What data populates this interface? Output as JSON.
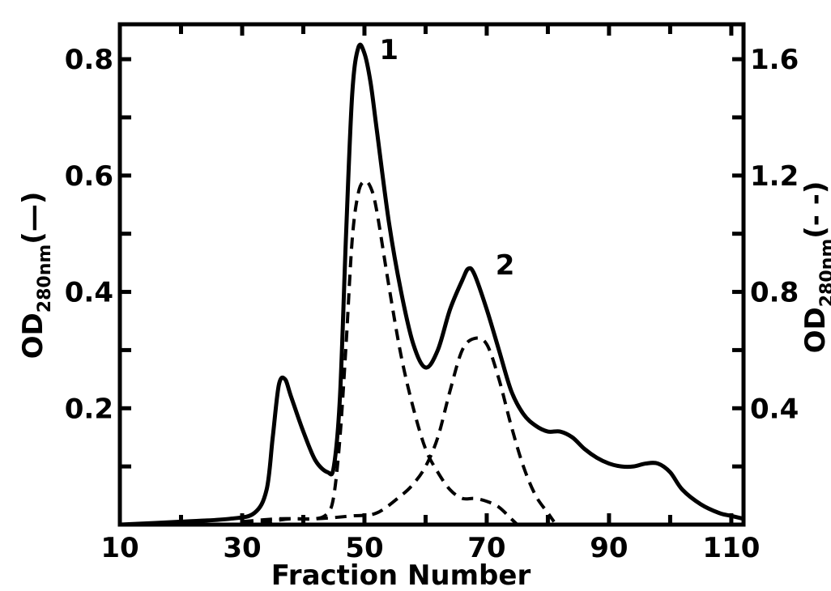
{
  "chart_data": {
    "type": "line",
    "xlabel": "Fraction Number",
    "ylabel_left": {
      "main": "OD",
      "sub": "280nm",
      "suffix": "(—)"
    },
    "ylabel_right": {
      "main": "OD",
      "sub": "280nm",
      "suffix": "(- -)"
    },
    "xlim": [
      10,
      112
    ],
    "ylim_left": [
      0,
      0.86
    ],
    "ylim_right": [
      0,
      1.72
    ],
    "x_ticks": [
      10,
      30,
      50,
      70,
      90,
      110
    ],
    "y_ticks_left": [
      0.2,
      0.4,
      0.6,
      0.8
    ],
    "y_ticks_right": [
      0.4,
      0.8,
      1.2,
      1.6
    ],
    "peak_labels": [
      {
        "text": "1",
        "x": 54,
        "y": 0.8
      },
      {
        "text": "2",
        "x": 73,
        "y": 0.43
      }
    ],
    "series": [
      {
        "style": "solid",
        "axis": "left",
        "points": [
          [
            10,
            0.0
          ],
          [
            20,
            0.005
          ],
          [
            28,
            0.01
          ],
          [
            32,
            0.02
          ],
          [
            34,
            0.06
          ],
          [
            35,
            0.15
          ],
          [
            36,
            0.24
          ],
          [
            37,
            0.25
          ],
          [
            38,
            0.22
          ],
          [
            40,
            0.16
          ],
          [
            42,
            0.11
          ],
          [
            44,
            0.09
          ],
          [
            45,
            0.1
          ],
          [
            46,
            0.22
          ],
          [
            47,
            0.5
          ],
          [
            48,
            0.74
          ],
          [
            49,
            0.82
          ],
          [
            50,
            0.81
          ],
          [
            51,
            0.76
          ],
          [
            52,
            0.68
          ],
          [
            54,
            0.52
          ],
          [
            56,
            0.4
          ],
          [
            58,
            0.31
          ],
          [
            60,
            0.27
          ],
          [
            62,
            0.3
          ],
          [
            64,
            0.37
          ],
          [
            66,
            0.42
          ],
          [
            67,
            0.44
          ],
          [
            68,
            0.43
          ],
          [
            70,
            0.37
          ],
          [
            72,
            0.3
          ],
          [
            74,
            0.23
          ],
          [
            76,
            0.19
          ],
          [
            78,
            0.17
          ],
          [
            80,
            0.16
          ],
          [
            82,
            0.16
          ],
          [
            84,
            0.15
          ],
          [
            86,
            0.13
          ],
          [
            88,
            0.115
          ],
          [
            90,
            0.105
          ],
          [
            92,
            0.1
          ],
          [
            94,
            0.1
          ],
          [
            96,
            0.105
          ],
          [
            98,
            0.105
          ],
          [
            100,
            0.09
          ],
          [
            102,
            0.06
          ],
          [
            105,
            0.035
          ],
          [
            108,
            0.02
          ],
          [
            110,
            0.015
          ],
          [
            112,
            0.01
          ]
        ]
      },
      {
        "style": "dashed",
        "axis": "right",
        "points": [
          [
            30,
            0.0
          ],
          [
            34,
            0.01
          ],
          [
            38,
            0.02
          ],
          [
            42,
            0.02
          ],
          [
            44,
            0.04
          ],
          [
            45,
            0.1
          ],
          [
            46,
            0.3
          ],
          [
            47,
            0.62
          ],
          [
            48,
            0.98
          ],
          [
            49,
            1.14
          ],
          [
            50,
            1.18
          ],
          [
            51,
            1.16
          ],
          [
            52,
            1.08
          ],
          [
            54,
            0.82
          ],
          [
            56,
            0.58
          ],
          [
            58,
            0.4
          ],
          [
            60,
            0.26
          ],
          [
            62,
            0.18
          ],
          [
            64,
            0.12
          ],
          [
            66,
            0.09
          ],
          [
            68,
            0.09
          ],
          [
            70,
            0.08
          ],
          [
            72,
            0.06
          ],
          [
            74,
            0.02
          ],
          [
            75,
            0.0
          ]
        ]
      },
      {
        "style": "dashed",
        "axis": "right",
        "points": [
          [
            30,
            0.01
          ],
          [
            36,
            0.02
          ],
          [
            42,
            0.02
          ],
          [
            48,
            0.03
          ],
          [
            52,
            0.04
          ],
          [
            56,
            0.1
          ],
          [
            58,
            0.14
          ],
          [
            60,
            0.2
          ],
          [
            62,
            0.3
          ],
          [
            64,
            0.46
          ],
          [
            66,
            0.6
          ],
          [
            68,
            0.64
          ],
          [
            70,
            0.62
          ],
          [
            72,
            0.5
          ],
          [
            74,
            0.34
          ],
          [
            76,
            0.2
          ],
          [
            78,
            0.1
          ],
          [
            80,
            0.04
          ],
          [
            81,
            0.01
          ]
        ]
      }
    ]
  }
}
